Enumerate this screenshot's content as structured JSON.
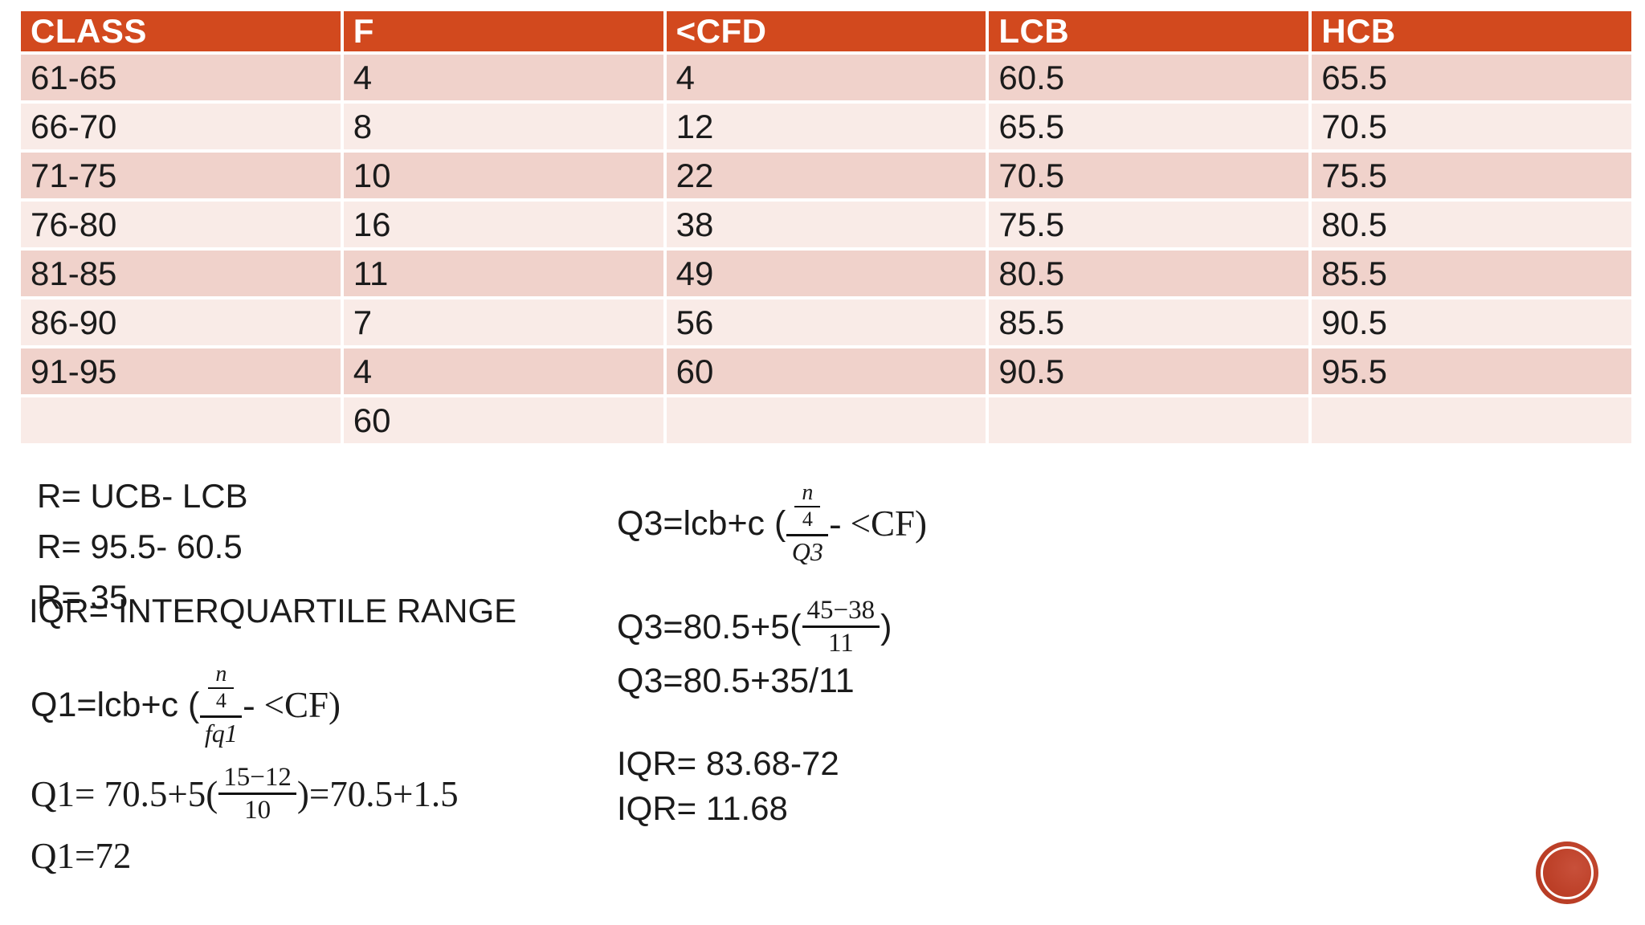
{
  "table": {
    "headers": [
      "CLASS",
      "F",
      "<CFD",
      "LCB",
      "HCB"
    ],
    "rows": [
      [
        "61-65",
        "4",
        "4",
        "60.5",
        "65.5"
      ],
      [
        "66-70",
        "8",
        "12",
        "65.5",
        "70.5"
      ],
      [
        "71-75",
        "10",
        "22",
        "70.5",
        "75.5"
      ],
      [
        "76-80",
        "16",
        "38",
        "75.5",
        "80.5"
      ],
      [
        "81-85",
        "11",
        "49",
        "80.5",
        "85.5"
      ],
      [
        "86-90",
        "7",
        "56",
        "85.5",
        "90.5"
      ],
      [
        "91-95",
        "4",
        "60",
        "90.5",
        "95.5"
      ],
      [
        "",
        "60",
        "",
        "",
        ""
      ]
    ]
  },
  "range_block": {
    "line1": "R= UCB- LCB",
    "line2": "R= 95.5- 60.5",
    "line3": "R= 35",
    "iqr_title": "IQR= INTERQUARTILE RANGE"
  },
  "q1_block": {
    "formula_prefix": "Q1=lcb+c (",
    "frac_num_top": "n",
    "frac_num_bottom": "4",
    "frac_den": "fq1",
    "formula_suffix": "- <CF)",
    "calc_prefix": "Q1= 70.5+5(",
    "calc_num": "15−12",
    "calc_den": "10",
    "calc_suffix": ")=70.5+1.5",
    "result": "Q1=72"
  },
  "q3_block": {
    "formula_prefix": "Q3=lcb+c (",
    "frac_num_top": "n",
    "frac_num_bottom": "4",
    "frac_den": "Q3",
    "formula_suffix": "- <CF)",
    "calc_prefix": "Q3=80.5+5(",
    "calc_num": "45−38",
    "calc_den": "11",
    "calc_suffix": ")",
    "calc2": "Q3=80.5+35/11",
    "iqr_line1": "IQR= 83.68-72",
    "iqr_line2": "IQR= 11.68"
  },
  "colors": {
    "header_bg": "#D2491E",
    "row_dark": "#F0D2CB",
    "row_light": "#F9EBE7",
    "logo_red": "#BC3F27"
  }
}
